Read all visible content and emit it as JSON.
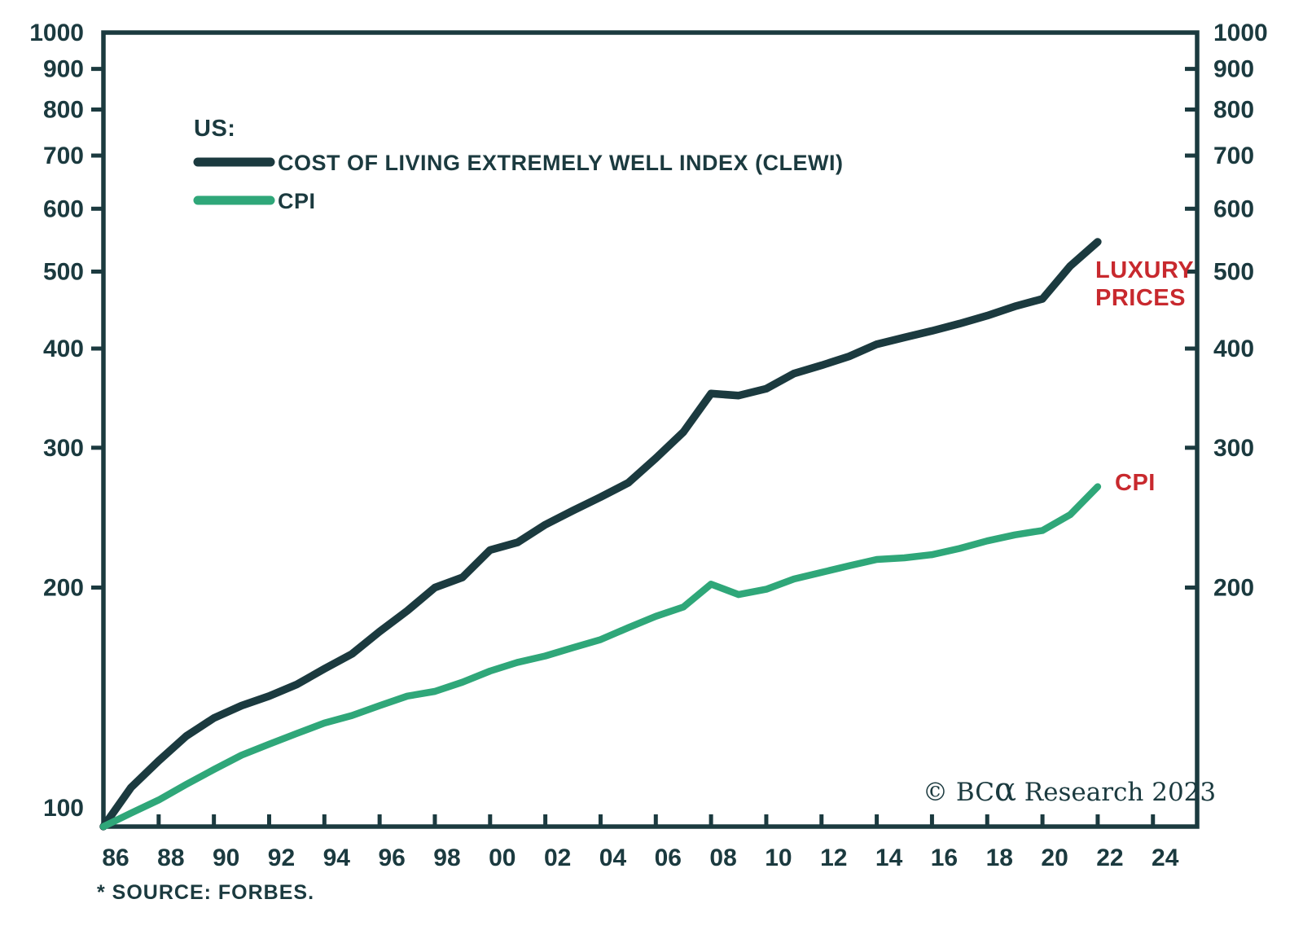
{
  "colors": {
    "dark_navy": "#1b3a3f",
    "green": "#2fa779",
    "red": "#c8292e",
    "background": "#ffffff"
  },
  "legend": {
    "region_label": "US:"
  },
  "annotations": {
    "luxury_line1": "LUXURY",
    "luxury_line2": "PRICES",
    "cpi": "CPI"
  },
  "branding": {
    "copyright_prefix": "© BC",
    "alpha_glyph": "α",
    "copyright_suffix": " Research 2023"
  },
  "footer": {
    "source_note": "* SOURCE: FORBES."
  },
  "chart_data": {
    "type": "line",
    "y_scale": "log",
    "grid": false,
    "legend_position": "top-left",
    "title": "",
    "xlabel": "",
    "ylabel": "",
    "ylim": [
      100,
      1000
    ],
    "xlim": [
      1986,
      2025.6
    ],
    "x": [
      1986,
      1987,
      1988,
      1989,
      1990,
      1991,
      1992,
      1993,
      1994,
      1995,
      1996,
      1997,
      1998,
      1999,
      2000,
      2001,
      2002,
      2003,
      2004,
      2005,
      2006,
      2007,
      2008,
      2009,
      2010,
      2011,
      2012,
      2013,
      2014,
      2015,
      2016,
      2017,
      2018,
      2019,
      2020,
      2021,
      2022
    ],
    "series": [
      {
        "name": "CLEWI",
        "label": "COST OF LIVING EXTREMELY WELL INDEX (CLEWI)",
        "color": "#1b3a3f",
        "values": [
          100,
          112,
          121,
          130,
          137,
          142,
          146,
          151,
          158,
          165,
          176,
          187,
          200,
          206,
          223,
          228,
          240,
          250,
          260,
          271,
          291,
          314,
          351,
          349,
          356,
          372,
          381,
          391,
          405,
          413,
          421,
          430,
          440,
          452,
          462,
          508,
          545
        ]
      },
      {
        "name": "CPI",
        "label": "CPI",
        "color": "#2fa779",
        "values": [
          100,
          104,
          108,
          113,
          118,
          123,
          127,
          131,
          135,
          138,
          142,
          146,
          148,
          152,
          157,
          161,
          164,
          168,
          172,
          178,
          184,
          189,
          202,
          196,
          199,
          205,
          209,
          213,
          217,
          218,
          220,
          224,
          229,
          233,
          236,
          247,
          268
        ]
      }
    ],
    "y_axis": {
      "left_labels": [
        1000,
        900,
        800,
        700,
        600,
        500,
        400,
        300,
        200,
        100
      ],
      "right_labels": [
        1000,
        900,
        800,
        700,
        600,
        500,
        400,
        300,
        200
      ],
      "tick_values": [
        900,
        800,
        700,
        600,
        500,
        400,
        300,
        200
      ]
    },
    "x_axis": {
      "entries": [
        {
          "year": 1986,
          "label": "86"
        },
        {
          "year": 1988,
          "label": "88"
        },
        {
          "year": 1990,
          "label": "90"
        },
        {
          "year": 1992,
          "label": "92"
        },
        {
          "year": 1994,
          "label": "94"
        },
        {
          "year": 1996,
          "label": "96"
        },
        {
          "year": 1998,
          "label": "98"
        },
        {
          "year": 2000,
          "label": "00"
        },
        {
          "year": 2002,
          "label": "02"
        },
        {
          "year": 2004,
          "label": "04"
        },
        {
          "year": 2006,
          "label": "06"
        },
        {
          "year": 2008,
          "label": "08"
        },
        {
          "year": 2010,
          "label": "10"
        },
        {
          "year": 2012,
          "label": "12"
        },
        {
          "year": 2014,
          "label": "14"
        },
        {
          "year": 2016,
          "label": "16"
        },
        {
          "year": 2018,
          "label": "18"
        },
        {
          "year": 2020,
          "label": "20"
        },
        {
          "year": 2022,
          "label": "22"
        },
        {
          "year": 2024,
          "label": "24"
        }
      ]
    }
  }
}
